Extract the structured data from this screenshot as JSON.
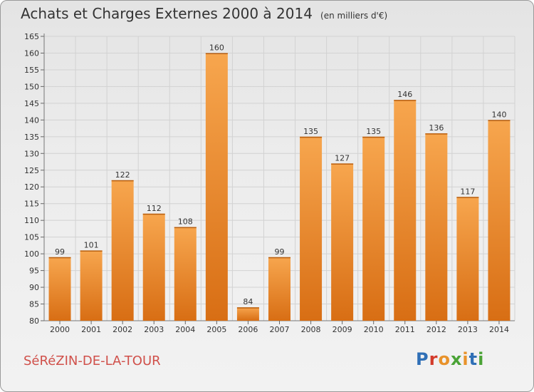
{
  "header": {
    "title": "Achats et Charges Externes 2000 à 2014",
    "unit_note": "(en milliers d'€)"
  },
  "footer": {
    "commune": "SéRéZIN-DE-LA-TOUR",
    "logo_text": "Proxiti"
  },
  "colors": {
    "bar_light": "#f7a64e",
    "bar_dark": "#d86e14",
    "commune_text": "#d0504a",
    "logo_letters": [
      "#2f6fb6",
      "#d33a2a",
      "#e8922a",
      "#4aa336",
      "#e8922a",
      "#2f6fb6",
      "#4aa336"
    ]
  },
  "chart_data": {
    "type": "bar",
    "categories": [
      "2000",
      "2001",
      "2002",
      "2003",
      "2004",
      "2005",
      "2006",
      "2007",
      "2008",
      "2009",
      "2010",
      "2011",
      "2012",
      "2013",
      "2014"
    ],
    "values": [
      99,
      101,
      122,
      112,
      108,
      160,
      84,
      99,
      135,
      127,
      135,
      146,
      136,
      117,
      140
    ],
    "title": "Achats et Charges Externes 2000 à 2014",
    "ylim": [
      80,
      165
    ],
    "yticks": [
      80,
      85,
      90,
      95,
      100,
      105,
      110,
      115,
      120,
      125,
      130,
      135,
      140,
      145,
      150,
      155,
      160,
      165
    ],
    "grid": true
  }
}
